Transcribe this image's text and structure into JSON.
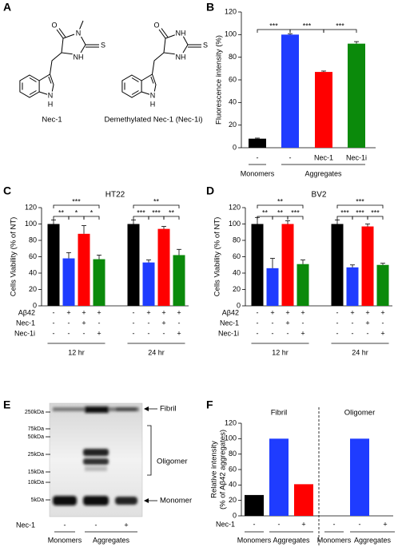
{
  "structures": {
    "panel": "A",
    "molecules": [
      {
        "name": "Nec-1",
        "atoms": [
          "O",
          "N",
          "S",
          "NH",
          "N",
          "H"
        ]
      },
      {
        "name": "Demethylated Nec-1 (Nec-1i)",
        "atoms": [
          "O",
          "NH",
          "S",
          "NH",
          "N",
          "H"
        ]
      }
    ]
  },
  "chart_data": [
    {
      "panel": "B",
      "type": "bar",
      "ylabel": "Fluorescence intensity (%)",
      "categories": [
        "-",
        "-",
        "Nec-1",
        "Nec-1i"
      ],
      "values": [
        8,
        100,
        67,
        92
      ],
      "errors": [
        0.5,
        0.8,
        0.8,
        1.8
      ],
      "colors": [
        "#000000",
        "#1f3cff",
        "#ff0000",
        "#0b8a0b"
      ],
      "groups": [
        {
          "name": "Monomers",
          "size": 1
        },
        {
          "name": "Aggregates",
          "size": 3
        }
      ],
      "ylim": [
        0,
        120
      ],
      "yticks": [
        0,
        20,
        40,
        60,
        80,
        100,
        120
      ],
      "significance": [
        {
          "pair": [
            0,
            1
          ],
          "label": "***"
        },
        {
          "pair": [
            1,
            2
          ],
          "label": "***"
        },
        {
          "pair": [
            2,
            3
          ],
          "label": "***"
        }
      ]
    },
    {
      "panel": "C",
      "type": "bar",
      "title": "HT22",
      "ylabel": "Cells Viability (% of NT)",
      "values": [
        100,
        58,
        88,
        57,
        100,
        53,
        94,
        62
      ],
      "errors": [
        5,
        7,
        10,
        5,
        5,
        3,
        3,
        7
      ],
      "colors": [
        "#000000",
        "#1f3cff",
        "#ff0000",
        "#0b8a0b",
        "#000000",
        "#1f3cff",
        "#ff0000",
        "#0b8a0b"
      ],
      "rows": [
        {
          "name": "Aβ42",
          "marks": [
            "-",
            "+",
            "+",
            "+",
            "-",
            "+",
            "+",
            "+"
          ]
        },
        {
          "name": "Nec-1",
          "marks": [
            "-",
            "-",
            "+",
            "-",
            "-",
            "-",
            "+",
            "-"
          ]
        },
        {
          "name": "Nec-1i",
          "marks": [
            "-",
            "-",
            "-",
            "+",
            "-",
            "-",
            "-",
            "+"
          ]
        }
      ],
      "groups": [
        {
          "name": "12 hr",
          "size": 4
        },
        {
          "name": "24 hr",
          "size": 4
        }
      ],
      "ylim": [
        0,
        120
      ],
      "yticks": [
        0,
        20,
        40,
        60,
        80,
        100,
        120
      ],
      "significance": [
        {
          "pair": [
            0,
            1
          ],
          "label": "**"
        },
        {
          "pair": [
            1,
            2
          ],
          "label": "*"
        },
        {
          "pair": [
            2,
            3
          ],
          "label": "*"
        },
        {
          "pair": [
            0,
            3
          ],
          "label": "***"
        },
        {
          "pair": [
            4,
            5
          ],
          "label": "***"
        },
        {
          "pair": [
            5,
            6
          ],
          "label": "***"
        },
        {
          "pair": [
            6,
            7
          ],
          "label": "**"
        },
        {
          "pair": [
            4,
            7
          ],
          "label": "**"
        }
      ]
    },
    {
      "panel": "D",
      "type": "bar",
      "title": "BV2",
      "ylabel": "Cells Viability (% of NT)",
      "values": [
        100,
        46,
        100,
        51,
        100,
        47,
        97,
        50
      ],
      "errors": [
        8,
        12,
        4,
        5,
        5,
        3,
        3,
        2
      ],
      "colors": [
        "#000000",
        "#1f3cff",
        "#ff0000",
        "#0b8a0b",
        "#000000",
        "#1f3cff",
        "#ff0000",
        "#0b8a0b"
      ],
      "rows": [
        {
          "name": "Aβ42",
          "marks": [
            "-",
            "+",
            "+",
            "+",
            "-",
            "+",
            "+",
            "+"
          ]
        },
        {
          "name": "Nec-1",
          "marks": [
            "-",
            "-",
            "+",
            "-",
            "-",
            "-",
            "+",
            "-"
          ]
        },
        {
          "name": "Nec-1i",
          "marks": [
            "-",
            "-",
            "-",
            "+",
            "-",
            "-",
            "-",
            "+"
          ]
        }
      ],
      "groups": [
        {
          "name": "12 hr",
          "size": 4
        },
        {
          "name": "24 hr",
          "size": 4
        }
      ],
      "ylim": [
        0,
        120
      ],
      "yticks": [
        0,
        20,
        40,
        60,
        80,
        100,
        120
      ],
      "significance": [
        {
          "pair": [
            0,
            1
          ],
          "label": "**"
        },
        {
          "pair": [
            1,
            2
          ],
          "label": "**"
        },
        {
          "pair": [
            2,
            3
          ],
          "label": "***"
        },
        {
          "pair": [
            0,
            3
          ],
          "label": "**"
        },
        {
          "pair": [
            4,
            5
          ],
          "label": "***"
        },
        {
          "pair": [
            5,
            6
          ],
          "label": "***"
        },
        {
          "pair": [
            6,
            7
          ],
          "label": "***"
        },
        {
          "pair": [
            4,
            7
          ],
          "label": "***"
        }
      ]
    },
    {
      "panel": "F",
      "type": "bar",
      "ylabel": [
        "Relative intensity",
        "(% of Aβ42 aggregates)"
      ],
      "sections": [
        "Fibril",
        "Oligomer"
      ],
      "values": [
        27,
        100,
        41,
        0,
        100,
        0
      ],
      "colors": [
        "#000000",
        "#1f3cff",
        "#ff0000",
        "#000000",
        "#1f3cff",
        "#ff0000"
      ],
      "rows": [
        {
          "name": "Nec-1",
          "marks": [
            "-",
            "-",
            "+",
            "-",
            "-",
            "+"
          ]
        }
      ],
      "groups": [
        {
          "name": "Monomers",
          "size": 1
        },
        {
          "name": "Aggregates",
          "size": 2
        },
        {
          "name": "Monomers",
          "size": 1
        },
        {
          "name": "Aggregates",
          "size": 2
        }
      ],
      "ylim": [
        0,
        120
      ],
      "yticks": [
        0,
        20,
        40,
        60,
        80,
        100,
        120
      ]
    }
  ],
  "gel": {
    "panel": "E",
    "markers": [
      "250kDa",
      "75kDa",
      "50kDa",
      "25kDa",
      "15kDa",
      "10kDa",
      "5kDa"
    ],
    "bands": [
      "Fibril",
      "Oligomer",
      "Monomer"
    ],
    "row": {
      "name": "Nec-1",
      "marks": [
        "-",
        "-",
        "+"
      ]
    },
    "groups": [
      "Monomers",
      "Aggregates"
    ]
  }
}
